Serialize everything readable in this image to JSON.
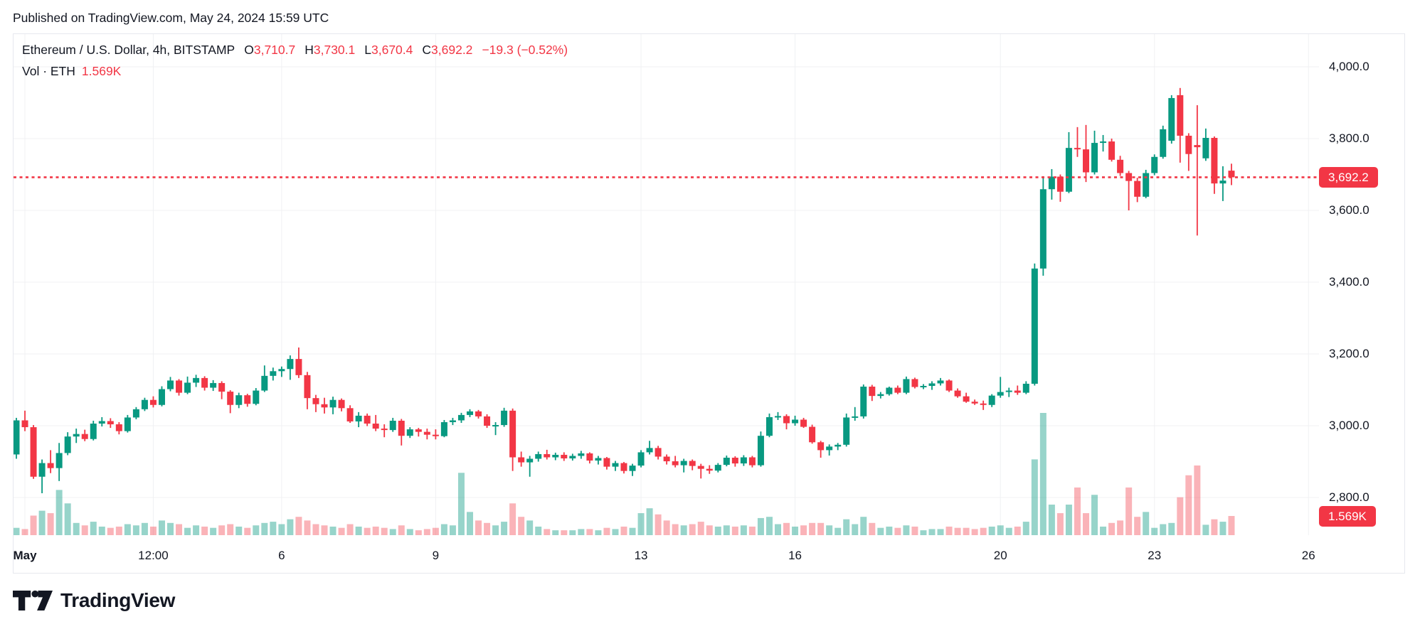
{
  "published": "Published on TradingView.com, May 24, 2024 15:59 UTC",
  "legend": {
    "title": "Ethereum / U.S. Dollar, 4h, BITSTAMP",
    "ohlc": [
      {
        "k": "O",
        "v": "3,710.7"
      },
      {
        "k": "H",
        "v": "3,730.1"
      },
      {
        "k": "L",
        "v": "3,670.4"
      },
      {
        "k": "C",
        "v": "3,692.2"
      }
    ],
    "change": "−19.3 (−0.52%)",
    "vol_label": "Vol · ETH",
    "vol_value": "1.569K"
  },
  "badges": {
    "price": "3,692.2",
    "volume": "1.569K"
  },
  "logo": {
    "brand": "TradingView"
  },
  "colors": {
    "up": "#089981",
    "down": "#F23645",
    "vol_up": "rgba(8,153,129,0.42)",
    "vol_down": "rgba(242,54,69,0.38)",
    "grid": "#F0F1F3",
    "text": "#131722",
    "accent_red": "#F23645"
  },
  "chart_data": {
    "type": "candlestick",
    "title": "Ethereum / U.S. Dollar",
    "symbol": "ETHUSD",
    "exchange": "BITSTAMP",
    "interval": "4h",
    "last_close": 3692.2,
    "last_volume_k": 1.569,
    "candle_format": [
      "open",
      "high",
      "low",
      "close",
      "volume_thousand_eth"
    ],
    "y_axis": {
      "side": "right",
      "ticks": [
        {
          "label": "4,000.0",
          "price": 4000
        },
        {
          "label": "3,800.0",
          "price": 3800
        },
        {
          "label": "3,600.0",
          "price": 3600
        },
        {
          "label": "3,400.0",
          "price": 3400
        },
        {
          "label": "3,200.0",
          "price": 3200
        },
        {
          "label": "3,000.0",
          "price": 3000
        },
        {
          "label": "2,800.0",
          "price": 2800
        }
      ]
    },
    "x_axis": {
      "ticks": [
        {
          "label": "May",
          "i": 1,
          "bold": true
        },
        {
          "label": "12:00",
          "i": 16
        },
        {
          "label": "6",
          "i": 31
        },
        {
          "label": "9",
          "i": 49
        },
        {
          "label": "13",
          "i": 73
        },
        {
          "label": "16",
          "i": 91
        },
        {
          "label": "20",
          "i": 115
        },
        {
          "label": "23",
          "i": 133
        },
        {
          "label": "26",
          "i": 151
        }
      ]
    },
    "candles": [
      [
        2920,
        3022,
        2908,
        3015,
        0.6
      ],
      [
        3015,
        3042,
        2985,
        2996,
        0.5
      ],
      [
        2996,
        3002,
        2852,
        2858,
        1.6
      ],
      [
        2858,
        2906,
        2812,
        2896,
        2.0
      ],
      [
        2896,
        2932,
        2868,
        2882,
        1.8
      ],
      [
        2882,
        2952,
        2846,
        2924,
        3.7
      ],
      [
        2924,
        2982,
        2918,
        2970,
        2.6
      ],
      [
        2970,
        2992,
        2952,
        2977,
        1.0
      ],
      [
        2977,
        2989,
        2957,
        2963,
        0.8
      ],
      [
        2963,
        3014,
        2959,
        3006,
        1.1
      ],
      [
        3006,
        3024,
        2998,
        3013,
        0.7
      ],
      [
        3013,
        3021,
        2994,
        3004,
        0.6
      ],
      [
        3004,
        3010,
        2976,
        2985,
        0.7
      ],
      [
        2985,
        3030,
        2981,
        3023,
        0.9
      ],
      [
        3023,
        3052,
        3018,
        3046,
        0.8
      ],
      [
        3046,
        3078,
        3041,
        3072,
        1.0
      ],
      [
        3072,
        3082,
        3051,
        3058,
        0.7
      ],
      [
        3058,
        3110,
        3054,
        3102,
        1.2
      ],
      [
        3102,
        3136,
        3096,
        3126,
        1.0
      ],
      [
        3126,
        3130,
        3084,
        3092,
        0.9
      ],
      [
        3092,
        3137,
        3088,
        3120,
        0.6
      ],
      [
        3120,
        3142,
        3108,
        3133,
        0.8
      ],
      [
        3133,
        3138,
        3098,
        3106,
        0.7
      ],
      [
        3106,
        3127,
        3097,
        3119,
        0.6
      ],
      [
        3119,
        3124,
        3074,
        3095,
        0.8
      ],
      [
        3095,
        3099,
        3035,
        3058,
        0.9
      ],
      [
        3058,
        3092,
        3049,
        3085,
        0.7
      ],
      [
        3085,
        3089,
        3053,
        3061,
        0.6
      ],
      [
        3061,
        3105,
        3057,
        3098,
        0.8
      ],
      [
        3098,
        3168,
        3094,
        3139,
        1.0
      ],
      [
        3139,
        3162,
        3126,
        3152,
        1.1
      ],
      [
        3152,
        3165,
        3136,
        3158,
        0.9
      ],
      [
        3158,
        3196,
        3128,
        3186,
        1.3
      ],
      [
        3186,
        3218,
        3133,
        3141,
        1.5
      ],
      [
        3141,
        3150,
        3046,
        3077,
        1.2
      ],
      [
        3077,
        3086,
        3038,
        3060,
        0.9
      ],
      [
        3060,
        3078,
        3034,
        3051,
        0.8
      ],
      [
        3051,
        3081,
        3032,
        3072,
        0.7
      ],
      [
        3072,
        3076,
        3040,
        3049,
        0.6
      ],
      [
        3049,
        3057,
        3008,
        3012,
        0.9
      ],
      [
        3012,
        3038,
        2996,
        3028,
        0.7
      ],
      [
        3028,
        3034,
        2999,
        3006,
        0.6
      ],
      [
        3006,
        3030,
        2985,
        2992,
        0.7
      ],
      [
        2992,
        3004,
        2968,
        2988,
        0.6
      ],
      [
        2988,
        3022,
        2983,
        3014,
        0.5
      ],
      [
        3014,
        3019,
        2945,
        2972,
        0.8
      ],
      [
        2972,
        2996,
        2966,
        2990,
        0.5
      ],
      [
        2990,
        2994,
        2970,
        2983,
        0.4
      ],
      [
        2983,
        2992,
        2962,
        2975,
        0.5
      ],
      [
        2975,
        2990,
        2962,
        2971,
        0.6
      ],
      [
        2971,
        3016,
        2968,
        3010,
        0.9
      ],
      [
        3010,
        3022,
        3002,
        3015,
        0.8
      ],
      [
        3015,
        3036,
        3008,
        3030,
        5.1
      ],
      [
        3030,
        3046,
        3024,
        3040,
        1.9
      ],
      [
        3040,
        3044,
        3020,
        3026,
        1.2
      ],
      [
        3026,
        3032,
        2994,
        3000,
        1.0
      ],
      [
        3000,
        3010,
        2974,
        3002,
        0.8
      ],
      [
        3002,
        3050,
        2997,
        3042,
        1.1
      ],
      [
        3042,
        3048,
        2874,
        2912,
        2.6
      ],
      [
        2912,
        2928,
        2886,
        2898,
        1.5
      ],
      [
        2898,
        2916,
        2858,
        2908,
        1.2
      ],
      [
        2908,
        2928,
        2900,
        2921,
        0.7
      ],
      [
        2921,
        2933,
        2906,
        2912,
        0.5
      ],
      [
        2912,
        2925,
        2904,
        2919,
        0.4
      ],
      [
        2919,
        2926,
        2902,
        2909,
        0.4
      ],
      [
        2909,
        2922,
        2903,
        2916,
        0.4
      ],
      [
        2916,
        2930,
        2908,
        2923,
        0.5
      ],
      [
        2923,
        2926,
        2895,
        2903,
        0.5
      ],
      [
        2903,
        2916,
        2892,
        2910,
        0.4
      ],
      [
        2910,
        2913,
        2878,
        2886,
        0.6
      ],
      [
        2886,
        2902,
        2874,
        2896,
        0.5
      ],
      [
        2896,
        2899,
        2867,
        2874,
        0.7
      ],
      [
        2874,
        2894,
        2860,
        2889,
        0.6
      ],
      [
        2889,
        2932,
        2884,
        2926,
        1.8
      ],
      [
        2926,
        2958,
        2920,
        2938,
        2.2
      ],
      [
        2938,
        2944,
        2906,
        2914,
        1.7
      ],
      [
        2914,
        2920,
        2892,
        2901,
        1.2
      ],
      [
        2901,
        2916,
        2884,
        2890,
        0.9
      ],
      [
        2890,
        2908,
        2870,
        2902,
        0.8
      ],
      [
        2902,
        2906,
        2876,
        2888,
        0.9
      ],
      [
        2888,
        2894,
        2853,
        2880,
        1.1
      ],
      [
        2880,
        2890,
        2866,
        2875,
        0.8
      ],
      [
        2875,
        2896,
        2870,
        2891,
        0.7
      ],
      [
        2891,
        2917,
        2887,
        2911,
        0.8
      ],
      [
        2911,
        2915,
        2886,
        2895,
        0.7
      ],
      [
        2895,
        2918,
        2888,
        2912,
        0.8
      ],
      [
        2912,
        2916,
        2884,
        2890,
        0.7
      ],
      [
        2890,
        2984,
        2886,
        2972,
        1.4
      ],
      [
        2972,
        3034,
        2968,
        3024,
        1.5
      ],
      [
        3024,
        3038,
        3016,
        3027,
        0.9
      ],
      [
        3027,
        3032,
        2990,
        3007,
        1.0
      ],
      [
        3007,
        3028,
        3000,
        3017,
        0.7
      ],
      [
        3017,
        3022,
        2994,
        2997,
        0.8
      ],
      [
        2997,
        3003,
        2950,
        2954,
        1.0
      ],
      [
        2954,
        2958,
        2911,
        2932,
        1.0
      ],
      [
        2932,
        2948,
        2917,
        2942,
        0.8
      ],
      [
        2942,
        2952,
        2932,
        2947,
        0.6
      ],
      [
        2947,
        3034,
        2942,
        3023,
        1.3
      ],
      [
        3023,
        3052,
        3014,
        3026,
        0.9
      ],
      [
        3026,
        3115,
        3020,
        3109,
        1.5
      ],
      [
        3109,
        3114,
        3069,
        3083,
        1.0
      ],
      [
        3083,
        3094,
        3076,
        3088,
        0.6
      ],
      [
        3088,
        3109,
        3084,
        3106,
        0.7
      ],
      [
        3106,
        3112,
        3088,
        3092,
        0.6
      ],
      [
        3092,
        3137,
        3088,
        3130,
        0.8
      ],
      [
        3130,
        3134,
        3104,
        3108,
        0.7
      ],
      [
        3108,
        3116,
        3102,
        3111,
        0.4
      ],
      [
        3111,
        3124,
        3100,
        3118,
        0.5
      ],
      [
        3118,
        3133,
        3112,
        3126,
        0.5
      ],
      [
        3126,
        3129,
        3094,
        3098,
        0.7
      ],
      [
        3098,
        3104,
        3078,
        3082,
        0.6
      ],
      [
        3082,
        3092,
        3064,
        3067,
        0.6
      ],
      [
        3067,
        3073,
        3058,
        3062,
        0.5
      ],
      [
        3062,
        3070,
        3044,
        3058,
        0.6
      ],
      [
        3058,
        3088,
        3052,
        3084,
        0.7
      ],
      [
        3084,
        3136,
        3078,
        3094,
        0.8
      ],
      [
        3094,
        3106,
        3080,
        3098,
        0.6
      ],
      [
        3098,
        3112,
        3086,
        3092,
        0.7
      ],
      [
        3092,
        3124,
        3088,
        3117,
        1.1
      ],
      [
        3117,
        3452,
        3112,
        3438,
        6.2
      ],
      [
        3438,
        3695,
        3418,
        3659,
        10.0
      ],
      [
        3659,
        3715,
        3630,
        3694,
        2.5
      ],
      [
        3694,
        3700,
        3624,
        3652,
        1.8
      ],
      [
        3652,
        3818,
        3648,
        3774,
        2.5
      ],
      [
        3774,
        3832,
        3749,
        3770,
        3.9
      ],
      [
        3770,
        3838,
        3679,
        3706,
        1.8
      ],
      [
        3706,
        3822,
        3700,
        3788,
        3.3
      ],
      [
        3788,
        3810,
        3764,
        3792,
        0.7
      ],
      [
        3792,
        3800,
        3736,
        3741,
        1.0
      ],
      [
        3741,
        3752,
        3696,
        3704,
        1.2
      ],
      [
        3704,
        3710,
        3600,
        3682,
        3.9
      ],
      [
        3682,
        3691,
        3623,
        3638,
        1.5
      ],
      [
        3638,
        3713,
        3634,
        3704,
        1.9
      ],
      [
        3704,
        3756,
        3698,
        3749,
        0.6
      ],
      [
        3749,
        3836,
        3744,
        3826,
        0.9
      ],
      [
        3794,
        3921,
        3786,
        3913,
        1.0
      ],
      [
        3921,
        3941,
        3733,
        3808,
        3.1
      ],
      [
        3808,
        3815,
        3710,
        3757,
        4.9
      ],
      [
        3782,
        3893,
        3530,
        3776,
        5.7
      ],
      [
        3745,
        3828,
        3738,
        3802,
        0.85
      ],
      [
        3802,
        3806,
        3646,
        3675,
        1.3
      ],
      [
        3675,
        3723,
        3626,
        3683,
        1.1
      ],
      [
        3710.7,
        3730.1,
        3670.4,
        3692.2,
        1.569
      ]
    ]
  }
}
